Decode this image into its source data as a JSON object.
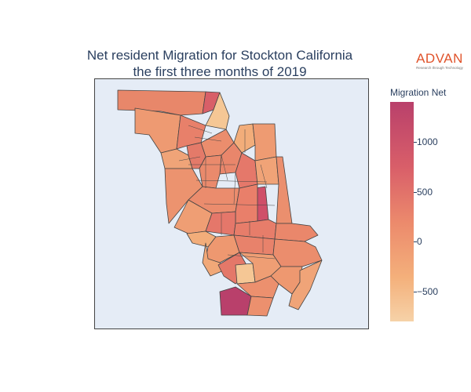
{
  "title": {
    "line1": "Net resident Migration for Stockton California",
    "line2": "the first three months of 2019"
  },
  "logo": {
    "word": "ADVAN",
    "tagline": "Research through Technology"
  },
  "colorbar": {
    "title": "Migration Net",
    "min": -800,
    "max": 1400,
    "ticks": [
      {
        "value": 1000,
        "label": "1000"
      },
      {
        "value": 500,
        "label": "500"
      },
      {
        "value": 0,
        "label": "0"
      },
      {
        "value": -500,
        "label": "−500"
      }
    ]
  },
  "colors": {
    "low": "#f6d2a8",
    "mid": "#ec8a6c",
    "high": "#b9406b",
    "land_background": "#e5ecf6",
    "border": "#444444"
  }
}
